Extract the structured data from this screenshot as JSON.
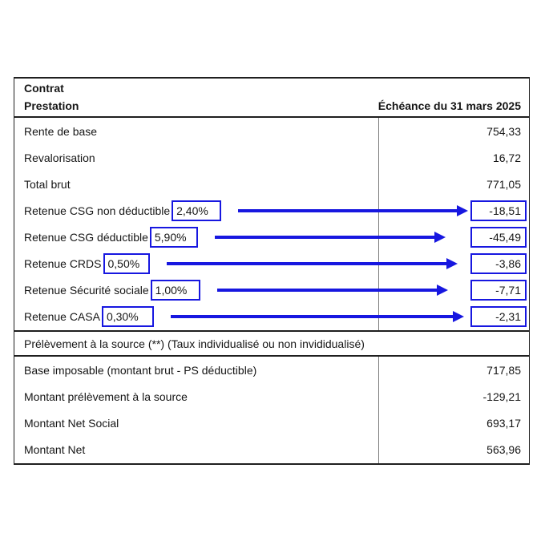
{
  "header": {
    "title_line1": "Contrat",
    "title_line2": "Prestation",
    "date_column": "Échéance du 31 mars 2025"
  },
  "upper_rows": [
    {
      "label": "Rente de base",
      "value": "754,33"
    },
    {
      "label": "Revalorisation",
      "value": "16,72"
    },
    {
      "label": "Total brut",
      "value": "771,05"
    },
    {
      "label": "Retenue CSG non déductible",
      "rate": "2,40%",
      "value": "-18,51"
    },
    {
      "label": "Retenue CSG déductible",
      "rate": "5,90%",
      "value": "-45,49"
    },
    {
      "label": "Retenue CRDS",
      "rate": "0,50%",
      "value": "-3,86"
    },
    {
      "label": "Retenue Sécurité sociale",
      "rate": "1,00%",
      "value": "-7,71"
    },
    {
      "label": "Retenue CASA",
      "rate": "0,30%",
      "value": "-2,31"
    }
  ],
  "section_band": {
    "label": "Prélèvement à la source (**) (Taux individualisé ou non invididualisé)"
  },
  "lower_rows": [
    {
      "label": "Base imposable (montant brut - PS déductible)",
      "value": "717,85"
    },
    {
      "label": "Montant prélèvement à la source",
      "value": "-129,21"
    },
    {
      "label": "Montant Net Social",
      "value": "693,17"
    },
    {
      "label": "Montant Net",
      "value": "563,96"
    }
  ],
  "colors": {
    "annotation_blue": "#1717e0",
    "border_black": "#1f1f1f",
    "column_divider_gray": "#7b7b7b",
    "background": "#ffffff"
  }
}
